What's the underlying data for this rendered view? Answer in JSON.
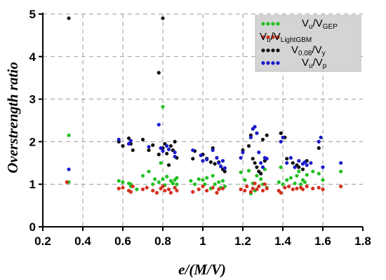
{
  "chart_data": {
    "type": "scatter",
    "xlabel": "e/(M/V)",
    "ylabel": "Overstrength ratio",
    "xlim": [
      0.2,
      1.8
    ],
    "ylim": [
      0,
      5
    ],
    "xticks": [
      "0.2",
      "0.4",
      "0.6",
      "0.8",
      "1",
      "1.2",
      "1.4",
      "1.6",
      "1.8"
    ],
    "yticks": [
      "0",
      "1",
      "2",
      "3",
      "4",
      "5"
    ],
    "grid": true,
    "legend_position": "top-right",
    "series": [
      {
        "name_main": "V",
        "name_sub1": "u",
        "name_mid": "/V",
        "name_sub2": "GEP",
        "color": "#22c022",
        "points": [
          [
            0.33,
            2.15
          ],
          [
            0.33,
            1.05
          ],
          [
            0.58,
            1.08
          ],
          [
            0.6,
            1.05
          ],
          [
            0.63,
            1.02
          ],
          [
            0.64,
            0.95
          ],
          [
            0.64,
            1.0
          ],
          [
            0.67,
            0.88
          ],
          [
            0.7,
            1.2
          ],
          [
            0.73,
            1.3
          ],
          [
            0.75,
            1.0
          ],
          [
            0.76,
            1.12
          ],
          [
            0.78,
            1.05
          ],
          [
            0.79,
            1.5
          ],
          [
            0.8,
            2.82
          ],
          [
            0.8,
            1.12
          ],
          [
            0.81,
            0.98
          ],
          [
            0.82,
            1.18
          ],
          [
            0.84,
            1.08
          ],
          [
            0.85,
            1.02
          ],
          [
            0.86,
            1.1
          ],
          [
            0.86,
            0.92
          ],
          [
            0.87,
            1.15
          ],
          [
            0.87,
            1.0
          ],
          [
            0.94,
            1.08
          ],
          [
            0.96,
            1.0
          ],
          [
            0.98,
            1.12
          ],
          [
            1.0,
            1.1
          ],
          [
            1.01,
            1.0
          ],
          [
            1.02,
            1.15
          ],
          [
            1.04,
            0.9
          ],
          [
            1.05,
            1.2
          ],
          [
            1.06,
            1.0
          ],
          [
            1.08,
            1.05
          ],
          [
            1.09,
            0.92
          ],
          [
            1.1,
            1.08
          ],
          [
            1.11,
            0.95
          ],
          [
            1.19,
            1.28
          ],
          [
            1.21,
            1.1
          ],
          [
            1.23,
            1.32
          ],
          [
            1.24,
            0.78
          ],
          [
            1.25,
            1.02
          ],
          [
            1.26,
            0.85
          ],
          [
            1.27,
            1.2
          ],
          [
            1.28,
            0.95
          ],
          [
            1.29,
            1.12
          ],
          [
            1.3,
            1.0
          ],
          [
            1.31,
            1.35
          ],
          [
            1.32,
            0.92
          ],
          [
            1.38,
            1.05
          ],
          [
            1.39,
            1.4
          ],
          [
            1.4,
            1.0
          ],
          [
            1.42,
            1.1
          ],
          [
            1.44,
            1.15
          ],
          [
            1.46,
            1.02
          ],
          [
            1.47,
            1.2
          ],
          [
            1.48,
            1.3
          ],
          [
            1.49,
            1.0
          ],
          [
            1.5,
            1.1
          ],
          [
            1.51,
            1.05
          ],
          [
            1.52,
            1.22
          ],
          [
            1.55,
            1.3
          ],
          [
            1.58,
            1.25
          ],
          [
            1.6,
            1.1
          ],
          [
            1.69,
            1.3
          ]
        ]
      },
      {
        "name_main": "V",
        "name_sub1": "u",
        "name_mid": "/V",
        "name_sub2": "LightGBM",
        "color": "#d43020",
        "points": [
          [
            0.32,
            1.05
          ],
          [
            0.58,
            0.9
          ],
          [
            0.6,
            0.92
          ],
          [
            0.63,
            0.85
          ],
          [
            0.64,
            0.82
          ],
          [
            0.65,
            0.95
          ],
          [
            0.7,
            0.88
          ],
          [
            0.72,
            0.92
          ],
          [
            0.75,
            0.85
          ],
          [
            0.77,
            0.8
          ],
          [
            0.79,
            0.9
          ],
          [
            0.8,
            0.95
          ],
          [
            0.81,
            0.85
          ],
          [
            0.83,
            0.88
          ],
          [
            0.84,
            0.8
          ],
          [
            0.86,
            0.92
          ],
          [
            0.87,
            0.85
          ],
          [
            0.95,
            0.82
          ],
          [
            0.98,
            0.88
          ],
          [
            1.0,
            0.95
          ],
          [
            1.02,
            0.85
          ],
          [
            1.05,
            0.92
          ],
          [
            1.07,
            0.8
          ],
          [
            1.08,
            0.88
          ],
          [
            1.1,
            0.9
          ],
          [
            1.19,
            0.88
          ],
          [
            1.21,
            0.85
          ],
          [
            1.22,
            0.95
          ],
          [
            1.24,
            0.82
          ],
          [
            1.25,
            0.9
          ],
          [
            1.26,
            1.02
          ],
          [
            1.27,
            0.88
          ],
          [
            1.28,
            0.95
          ],
          [
            1.3,
            0.85
          ],
          [
            1.31,
            1.0
          ],
          [
            1.32,
            0.9
          ],
          [
            1.38,
            0.85
          ],
          [
            1.39,
            0.8
          ],
          [
            1.41,
            0.92
          ],
          [
            1.43,
            0.95
          ],
          [
            1.45,
            0.88
          ],
          [
            1.47,
            0.9
          ],
          [
            1.49,
            0.92
          ],
          [
            1.5,
            0.88
          ],
          [
            1.52,
            0.95
          ],
          [
            1.55,
            0.9
          ],
          [
            1.58,
            0.92
          ],
          [
            1.6,
            0.88
          ],
          [
            1.69,
            0.95
          ]
        ]
      },
      {
        "name_main": "V",
        "name_sub1": "0.08",
        "name_mid": "/V",
        "name_sub2": "y",
        "color": "#111111",
        "points": [
          [
            0.33,
            4.9
          ],
          [
            0.58,
            2.0
          ],
          [
            0.6,
            1.9
          ],
          [
            0.63,
            2.08
          ],
          [
            0.64,
            1.95
          ],
          [
            0.65,
            1.8
          ],
          [
            0.7,
            2.05
          ],
          [
            0.73,
            1.8
          ],
          [
            0.75,
            1.92
          ],
          [
            0.78,
            3.62
          ],
          [
            0.8,
            4.9
          ],
          [
            0.78,
            1.7
          ],
          [
            0.8,
            1.85
          ],
          [
            0.81,
            1.95
          ],
          [
            0.82,
            1.72
          ],
          [
            0.83,
            1.45
          ],
          [
            0.84,
            1.9
          ],
          [
            0.85,
            1.8
          ],
          [
            0.86,
            2.0
          ],
          [
            0.87,
            1.62
          ],
          [
            0.95,
            1.6
          ],
          [
            0.96,
            1.78
          ],
          [
            1.0,
            1.7
          ],
          [
            1.02,
            1.6
          ],
          [
            1.04,
            1.52
          ],
          [
            1.05,
            1.85
          ],
          [
            1.06,
            1.48
          ],
          [
            1.08,
            1.52
          ],
          [
            1.09,
            1.42
          ],
          [
            1.1,
            1.35
          ],
          [
            1.11,
            1.3
          ],
          [
            1.2,
            1.8
          ],
          [
            1.23,
            1.9
          ],
          [
            1.24,
            2.15
          ],
          [
            1.25,
            1.6
          ],
          [
            1.26,
            1.5
          ],
          [
            1.27,
            1.4
          ],
          [
            1.28,
            1.3
          ],
          [
            1.29,
            1.25
          ],
          [
            1.3,
            2.05
          ],
          [
            1.31,
            1.55
          ],
          [
            1.32,
            2.15
          ],
          [
            1.39,
            2.2
          ],
          [
            1.41,
            2.1
          ],
          [
            1.42,
            1.6
          ],
          [
            1.45,
            1.5
          ],
          [
            1.47,
            1.45
          ],
          [
            1.48,
            1.4
          ],
          [
            1.5,
            1.35
          ],
          [
            1.52,
            1.55
          ],
          [
            1.58,
            1.85
          ]
        ]
      },
      {
        "name_main": "V",
        "name_sub1": "u",
        "name_mid": "/V",
        "name_sub2": "p",
        "color": "#1a1acc",
        "points": [
          [
            0.33,
            1.35
          ],
          [
            0.58,
            2.05
          ],
          [
            0.63,
            1.95
          ],
          [
            0.64,
            2.02
          ],
          [
            0.73,
            1.88
          ],
          [
            0.78,
            2.4
          ],
          [
            0.79,
            1.85
          ],
          [
            0.8,
            1.78
          ],
          [
            0.82,
            1.9
          ],
          [
            0.83,
            1.82
          ],
          [
            0.86,
            1.75
          ],
          [
            0.86,
            1.65
          ],
          [
            0.95,
            1.8
          ],
          [
            0.99,
            1.68
          ],
          [
            1.0,
            1.55
          ],
          [
            1.02,
            1.58
          ],
          [
            1.05,
            1.8
          ],
          [
            1.07,
            1.62
          ],
          [
            1.08,
            1.5
          ],
          [
            1.09,
            1.42
          ],
          [
            1.1,
            1.55
          ],
          [
            1.11,
            1.38
          ],
          [
            1.19,
            1.62
          ],
          [
            1.2,
            1.75
          ],
          [
            1.24,
            2.1
          ],
          [
            1.25,
            2.3
          ],
          [
            1.26,
            2.35
          ],
          [
            1.27,
            2.2
          ],
          [
            1.28,
            1.75
          ],
          [
            1.29,
            1.5
          ],
          [
            1.3,
            1.4
          ],
          [
            1.31,
            1.62
          ],
          [
            1.32,
            1.6
          ],
          [
            1.39,
            2.0
          ],
          [
            1.4,
            2.1
          ],
          [
            1.42,
            1.5
          ],
          [
            1.44,
            1.62
          ],
          [
            1.46,
            1.4
          ],
          [
            1.48,
            1.55
          ],
          [
            1.5,
            1.48
          ],
          [
            1.51,
            1.52
          ],
          [
            1.52,
            1.45
          ],
          [
            1.54,
            1.5
          ],
          [
            1.58,
            2.0
          ],
          [
            1.59,
            2.1
          ],
          [
            1.6,
            1.4
          ],
          [
            1.69,
            1.5
          ]
        ]
      }
    ]
  }
}
